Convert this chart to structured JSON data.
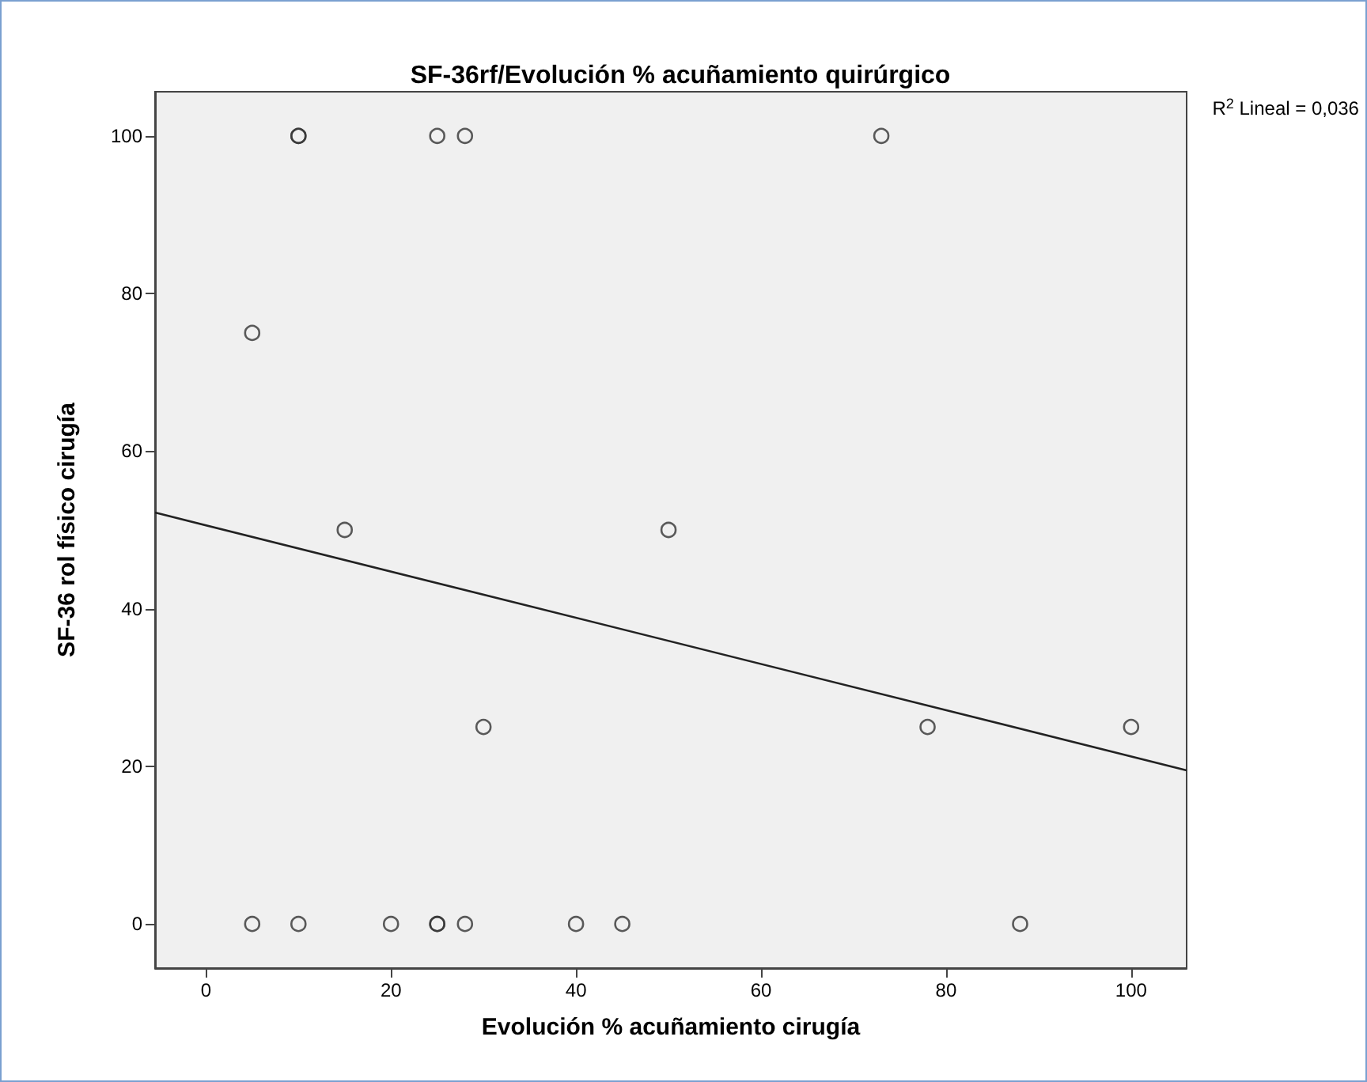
{
  "chart_data": {
    "type": "scatter",
    "title": "SF-36rf/Evolución % acuñamiento quirúrgico",
    "xlabel": "Evolución % acuñamiento cirugía",
    "ylabel": "SF-36 rol físico cirugía",
    "annotations": [
      "R$^{2}$ Lineal = 0,036"
    ],
    "xlim": [
      -5.5,
      106
    ],
    "ylim": [
      -5.6,
      105.6
    ],
    "xticks": [
      0,
      20,
      40,
      60,
      80,
      100
    ],
    "yticks": [
      0,
      20,
      40,
      60,
      80,
      100
    ],
    "marker": "circle",
    "series": [
      {
        "color": "#333333",
        "x": [
          10,
          10,
          25,
          28,
          73,
          5,
          15,
          50,
          30,
          78,
          100,
          5,
          10,
          20,
          25,
          25,
          28,
          40,
          45,
          88
        ],
        "values": [
          100,
          100,
          100,
          100,
          100,
          75,
          50,
          50,
          25,
          25,
          25,
          0,
          0,
          0,
          0,
          0,
          0,
          0,
          0,
          0
        ]
      },
      {
        "type": "line",
        "color": "#222222",
        "marker": "none",
        "line_style": "solid",
        "x": [
          -5.5,
          106
        ],
        "values": [
          52.2,
          19.5
        ]
      }
    ]
  }
}
